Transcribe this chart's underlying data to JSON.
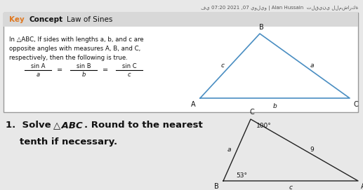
{
  "bg_color": "#e8e8e8",
  "box_border": "#999999",
  "header_bg": "#d8d8d8",
  "box_white": "#ffffff",
  "header_orange": "#e07820",
  "top_text": "في 07:20 2021 ,07 يوليو | Alan Hussain  تلقيني للمشاركة",
  "body_lines": [
    "In △ABC, If sides with lengths a, b, and c are",
    "opposite angles with measures A, B, and C,",
    "respectively, then the following is true."
  ],
  "tri1_color": "#4a8ec2",
  "tri2_color": "#222222",
  "problem_bold": "#111111"
}
